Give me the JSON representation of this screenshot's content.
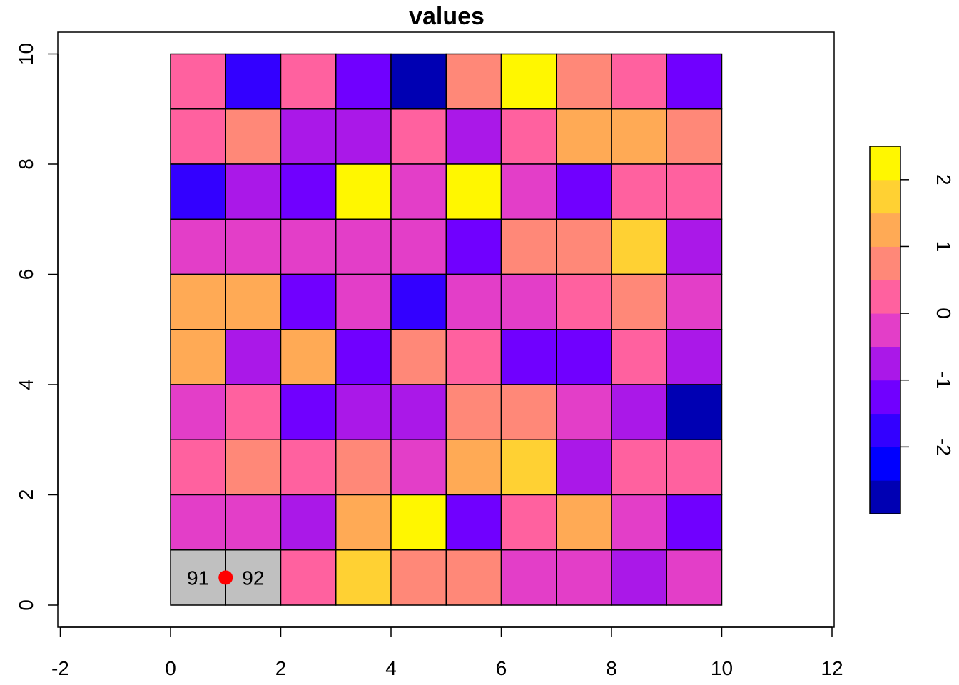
{
  "chart_data": {
    "type": "heatmap",
    "title": "values",
    "xlabel": "",
    "ylabel": "",
    "xlim": [
      -2,
      12
    ],
    "ylim": [
      0,
      10
    ],
    "x_ticks": [
      "-2",
      "0",
      "2",
      "4",
      "6",
      "8",
      "10",
      "12"
    ],
    "y_ticks": [
      "0",
      "2",
      "4",
      "6",
      "8",
      "10"
    ],
    "grid": false,
    "legend": {
      "position": "right",
      "ticks": [
        "-2",
        "-1",
        "0",
        "1",
        "2"
      ],
      "colors": [
        "#0000B3",
        "#0000FF",
        "#3300FF",
        "#7000FF",
        "#AA18E8",
        "#E33EC8",
        "#FF619F",
        "#FF8878",
        "#FFAA55",
        "#FFD133",
        "#FFF700"
      ],
      "breaks": [
        -3.0,
        -2.5,
        -2.0,
        -1.5,
        -1.0,
        -0.5,
        0.0,
        0.5,
        1.0,
        1.5,
        2.0,
        2.5
      ]
    },
    "cell_colors_top_to_bottom": [
      [
        "#FF619F",
        "#3300FF",
        "#FF619F",
        "#7000FF",
        "#0000B3",
        "#FF8878",
        "#FFF700",
        "#FF8878",
        "#FF619F",
        "#7000FF"
      ],
      [
        "#FF619F",
        "#FF8878",
        "#AA18E8",
        "#AA18E8",
        "#FF619F",
        "#AA18E8",
        "#FF619F",
        "#FFAA55",
        "#FFAA55",
        "#FF8878"
      ],
      [
        "#3300FF",
        "#AA18E8",
        "#7000FF",
        "#FFF700",
        "#E33EC8",
        "#FFF700",
        "#E33EC8",
        "#7000FF",
        "#FF619F",
        "#FF619F"
      ],
      [
        "#E33EC8",
        "#E33EC8",
        "#E33EC8",
        "#E33EC8",
        "#E33EC8",
        "#7000FF",
        "#FF8878",
        "#FF8878",
        "#FFD133",
        "#AA18E8"
      ],
      [
        "#FFAA55",
        "#FFAA55",
        "#7000FF",
        "#E33EC8",
        "#3300FF",
        "#E33EC8",
        "#E33EC8",
        "#FF619F",
        "#FF8878",
        "#E33EC8"
      ],
      [
        "#FFAA55",
        "#AA18E8",
        "#FFAA55",
        "#7000FF",
        "#FF8878",
        "#FF619F",
        "#7000FF",
        "#7000FF",
        "#FF619F",
        "#AA18E8"
      ],
      [
        "#E33EC8",
        "#FF619F",
        "#7000FF",
        "#AA18E8",
        "#AA18E8",
        "#FF8878",
        "#FF8878",
        "#E33EC8",
        "#AA18E8",
        "#0000B3"
      ],
      [
        "#FF619F",
        "#FF8878",
        "#FF619F",
        "#FF8878",
        "#E33EC8",
        "#FFAA55",
        "#FFD133",
        "#AA18E8",
        "#FF619F",
        "#FF619F"
      ],
      [
        "#E33EC8",
        "#E33EC8",
        "#AA18E8",
        "#FFAA55",
        "#FFF700",
        "#7000FF",
        "#FF619F",
        "#FFAA55",
        "#E33EC8",
        "#7000FF"
      ],
      [
        "#C0C0C0",
        "#C0C0C0",
        "#FF619F",
        "#FFD133",
        "#FF8878",
        "#FF8878",
        "#E33EC8",
        "#E33EC8",
        "#AA18E8",
        "#E33EC8"
      ]
    ],
    "highlighted_cells": [
      {
        "label": "91",
        "x": 0.5,
        "y": 0.5,
        "color": "#C0C0C0"
      },
      {
        "label": "92",
        "x": 1.5,
        "y": 0.5,
        "color": "#C0C0C0"
      }
    ],
    "point": {
      "x": 1,
      "y": 0.5,
      "color": "#FF0000"
    }
  }
}
